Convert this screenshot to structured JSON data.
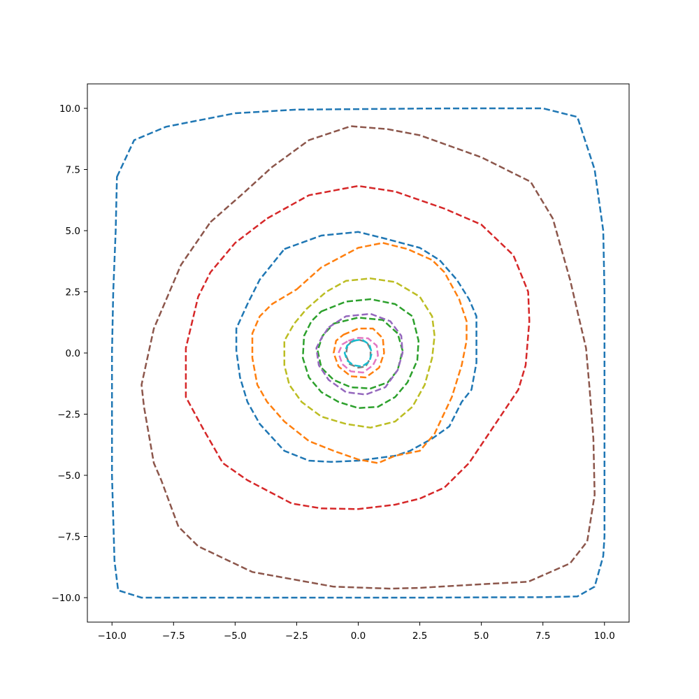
{
  "chart_data": {
    "type": "line",
    "title": "",
    "xlabel": "",
    "ylabel": "",
    "xlim": [
      -11,
      11
    ],
    "ylim": [
      -11,
      11
    ],
    "xticks": [
      -10.0,
      -7.5,
      -5.0,
      -2.5,
      0.0,
      2.5,
      5.0,
      7.5,
      10.0
    ],
    "yticks": [
      -10.0,
      -7.5,
      -5.0,
      -2.5,
      0.0,
      2.5,
      5.0,
      7.5,
      10.0
    ],
    "xtick_labels": [
      "−10.0",
      "−7.5",
      "−5.0",
      "−2.5",
      "0.0",
      "2.5",
      "5.0",
      "7.5",
      "10.0"
    ],
    "ytick_labels": [
      "−10.0",
      "−7.5",
      "−5.0",
      "−2.5",
      "0.0",
      "2.5",
      "5.0",
      "7.5",
      "10.0"
    ],
    "grid": false,
    "line_style": "dashed",
    "series": [
      {
        "color": "#1f77b4",
        "closed": true,
        "points": [
          [
            -9.8,
            7.2
          ],
          [
            -9.1,
            8.7
          ],
          [
            -7.8,
            9.25
          ],
          [
            -5.0,
            9.8
          ],
          [
            -2.5,
            9.95
          ],
          [
            0.0,
            9.97
          ],
          [
            2.5,
            9.99
          ],
          [
            5.0,
            10.0
          ],
          [
            7.5,
            10.0
          ],
          [
            8.9,
            9.65
          ],
          [
            9.6,
            7.5
          ],
          [
            9.95,
            5.0
          ],
          [
            10.0,
            2.5
          ],
          [
            10.0,
            0.0
          ],
          [
            10.0,
            -2.5
          ],
          [
            10.0,
            -5.0
          ],
          [
            10.0,
            -7.5
          ],
          [
            9.95,
            -8.3
          ],
          [
            9.6,
            -9.55
          ],
          [
            8.9,
            -9.95
          ],
          [
            7.5,
            -9.98
          ],
          [
            5.0,
            -9.99
          ],
          [
            2.5,
            -10.0
          ],
          [
            0.0,
            -10.0
          ],
          [
            -2.5,
            -10.0
          ],
          [
            -5.0,
            -10.0
          ],
          [
            -7.5,
            -10.0
          ],
          [
            -8.8,
            -10.0
          ],
          [
            -9.75,
            -9.7
          ],
          [
            -9.9,
            -8.5
          ],
          [
            -10.0,
            -5.0
          ],
          [
            -10.0,
            -2.5
          ],
          [
            -10.0,
            0.0
          ],
          [
            -9.95,
            2.5
          ],
          [
            -9.85,
            5.0
          ]
        ]
      },
      {
        "color": "#8c564b",
        "closed": true,
        "points": [
          [
            -6.0,
            5.35
          ],
          [
            -4.7,
            6.5
          ],
          [
            -3.5,
            7.6
          ],
          [
            -2.0,
            8.7
          ],
          [
            -0.3,
            9.27
          ],
          [
            1.2,
            9.15
          ],
          [
            2.5,
            8.9
          ],
          [
            5.0,
            8.0
          ],
          [
            7.0,
            7.0
          ],
          [
            7.9,
            5.5
          ],
          [
            8.6,
            3.0
          ],
          [
            9.25,
            0.2
          ],
          [
            9.4,
            -1.5
          ],
          [
            9.55,
            -3.5
          ],
          [
            9.6,
            -5.8
          ],
          [
            9.3,
            -7.7
          ],
          [
            8.6,
            -8.6
          ],
          [
            6.9,
            -9.35
          ],
          [
            5.0,
            -9.45
          ],
          [
            2.5,
            -9.6
          ],
          [
            1.3,
            -9.63
          ],
          [
            -1.0,
            -9.55
          ],
          [
            -4.3,
            -8.95
          ],
          [
            -6.5,
            -7.9
          ],
          [
            -7.3,
            -7.1
          ],
          [
            -8.0,
            -5.2
          ],
          [
            -8.3,
            -4.5
          ],
          [
            -8.7,
            -2.2
          ],
          [
            -8.8,
            -1.3
          ],
          [
            -8.3,
            1.0
          ],
          [
            -7.2,
            3.6
          ]
        ]
      },
      {
        "color": "#d62728",
        "closed": true,
        "points": [
          [
            -3.7,
            5.5
          ],
          [
            -2.0,
            6.45
          ],
          [
            0.0,
            6.83
          ],
          [
            1.5,
            6.6
          ],
          [
            3.5,
            5.9
          ],
          [
            5.0,
            5.25
          ],
          [
            6.3,
            4.0
          ],
          [
            6.9,
            2.5
          ],
          [
            6.95,
            1.3
          ],
          [
            6.8,
            -0.5
          ],
          [
            6.5,
            -1.5
          ],
          [
            5.5,
            -3.0
          ],
          [
            4.5,
            -4.5
          ],
          [
            3.5,
            -5.5
          ],
          [
            2.5,
            -5.95
          ],
          [
            1.5,
            -6.2
          ],
          [
            0.0,
            -6.38
          ],
          [
            -1.5,
            -6.35
          ],
          [
            -2.7,
            -6.15
          ],
          [
            -4.5,
            -5.2
          ],
          [
            -5.5,
            -4.5
          ],
          [
            -6.3,
            -3.1
          ],
          [
            -7.0,
            -1.8
          ],
          [
            -7.0,
            0.2
          ],
          [
            -6.5,
            2.3
          ],
          [
            -6.0,
            3.3
          ],
          [
            -5.0,
            4.5
          ]
        ]
      },
      {
        "color": "#1f77b4",
        "closed": true,
        "points": [
          [
            -3.0,
            4.25
          ],
          [
            -1.5,
            4.8
          ],
          [
            0.0,
            4.95
          ],
          [
            1.0,
            4.7
          ],
          [
            2.5,
            4.3
          ],
          [
            3.3,
            3.8
          ],
          [
            4.0,
            3.0
          ],
          [
            4.5,
            2.2
          ],
          [
            4.8,
            1.5
          ],
          [
            4.8,
            0.5
          ],
          [
            4.8,
            -0.4
          ],
          [
            4.6,
            -1.5
          ],
          [
            4.2,
            -2.0
          ],
          [
            3.7,
            -3.0
          ],
          [
            3.0,
            -3.5
          ],
          [
            2.1,
            -4.0
          ],
          [
            1.5,
            -4.2
          ],
          [
            0.0,
            -4.4
          ],
          [
            -1.1,
            -4.45
          ],
          [
            -2.0,
            -4.4
          ],
          [
            -3.0,
            -4.0
          ],
          [
            -4.0,
            -2.9
          ],
          [
            -4.5,
            -2.0
          ],
          [
            -4.8,
            -1.0
          ],
          [
            -4.95,
            0.1
          ],
          [
            -4.95,
            1.0
          ],
          [
            -4.5,
            2.0
          ],
          [
            -4.0,
            3.0
          ]
        ]
      },
      {
        "color": "#ff7f0e",
        "closed": true,
        "points": [
          [
            -2.5,
            2.6
          ],
          [
            -1.5,
            3.5
          ],
          [
            0.0,
            4.3
          ],
          [
            1.0,
            4.5
          ],
          [
            2.0,
            4.25
          ],
          [
            3.0,
            3.8
          ],
          [
            3.5,
            3.3
          ],
          [
            4.1,
            2.2
          ],
          [
            4.4,
            1.3
          ],
          [
            4.4,
            0.5
          ],
          [
            4.2,
            -0.5
          ],
          [
            3.8,
            -1.8
          ],
          [
            3.1,
            -3.3
          ],
          [
            2.5,
            -4.0
          ],
          [
            1.5,
            -4.2
          ],
          [
            0.8,
            -4.5
          ],
          [
            0.0,
            -4.35
          ],
          [
            -1.0,
            -4.0
          ],
          [
            -2.0,
            -3.6
          ],
          [
            -3.0,
            -2.8
          ],
          [
            -3.7,
            -2.0
          ],
          [
            -4.1,
            -1.3
          ],
          [
            -4.3,
            -0.2
          ],
          [
            -4.3,
            0.8
          ],
          [
            -4.0,
            1.5
          ],
          [
            -3.5,
            2.0
          ]
        ]
      },
      {
        "color": "#bcbd22",
        "closed": true,
        "points": [
          [
            -2.1,
            1.8
          ],
          [
            -1.3,
            2.5
          ],
          [
            -0.5,
            2.95
          ],
          [
            0.5,
            3.05
          ],
          [
            1.5,
            2.9
          ],
          [
            2.5,
            2.3
          ],
          [
            3.0,
            1.5
          ],
          [
            3.1,
            0.7
          ],
          [
            3.0,
            -0.2
          ],
          [
            2.7,
            -1.3
          ],
          [
            2.2,
            -2.2
          ],
          [
            1.5,
            -2.8
          ],
          [
            0.5,
            -3.05
          ],
          [
            -0.5,
            -2.9
          ],
          [
            -1.5,
            -2.6
          ],
          [
            -2.3,
            -2.0
          ],
          [
            -2.8,
            -1.3
          ],
          [
            -3.0,
            -0.5
          ],
          [
            -3.0,
            0.5
          ],
          [
            -2.6,
            1.2
          ]
        ]
      },
      {
        "color": "#2ca02c",
        "closed": true,
        "points": [
          [
            -1.5,
            1.7
          ],
          [
            -0.5,
            2.1
          ],
          [
            0.5,
            2.2
          ],
          [
            1.5,
            2.0
          ],
          [
            2.2,
            1.5
          ],
          [
            2.45,
            0.5
          ],
          [
            2.4,
            -0.3
          ],
          [
            2.0,
            -1.2
          ],
          [
            1.5,
            -1.8
          ],
          [
            0.8,
            -2.2
          ],
          [
            0.0,
            -2.25
          ],
          [
            -0.8,
            -2.0
          ],
          [
            -1.5,
            -1.6
          ],
          [
            -2.0,
            -1.0
          ],
          [
            -2.25,
            -0.2
          ],
          [
            -2.2,
            0.7
          ],
          [
            -1.9,
            1.3
          ]
        ]
      },
      {
        "color": "#2ca02c",
        "closed": true,
        "points": [
          [
            -1.0,
            1.2
          ],
          [
            0.0,
            1.45
          ],
          [
            1.0,
            1.35
          ],
          [
            1.6,
            0.8
          ],
          [
            1.8,
            0.1
          ],
          [
            1.6,
            -0.7
          ],
          [
            1.2,
            -1.2
          ],
          [
            0.5,
            -1.45
          ],
          [
            -0.3,
            -1.4
          ],
          [
            -1.0,
            -1.1
          ],
          [
            -1.5,
            -0.6
          ],
          [
            -1.65,
            0.1
          ],
          [
            -1.45,
            0.7
          ]
        ]
      },
      {
        "color": "#9467bd",
        "closed": true,
        "points": [
          [
            -1.2,
            1.05
          ],
          [
            -0.5,
            1.5
          ],
          [
            0.5,
            1.6
          ],
          [
            1.3,
            1.3
          ],
          [
            1.75,
            0.7
          ],
          [
            1.8,
            0.0
          ],
          [
            1.6,
            -0.7
          ],
          [
            1.1,
            -1.4
          ],
          [
            0.3,
            -1.7
          ],
          [
            -0.5,
            -1.6
          ],
          [
            -1.2,
            -1.1
          ],
          [
            -1.6,
            -0.5
          ],
          [
            -1.7,
            0.2
          ],
          [
            -1.5,
            0.6
          ]
        ]
      },
      {
        "color": "#ff7f0e",
        "closed": true,
        "points": [
          [
            -0.6,
            0.75
          ],
          [
            0.0,
            1.0
          ],
          [
            0.6,
            1.0
          ],
          [
            1.0,
            0.6
          ],
          [
            1.05,
            0.0
          ],
          [
            0.85,
            -0.6
          ],
          [
            0.3,
            -1.0
          ],
          [
            -0.3,
            -0.95
          ],
          [
            -0.8,
            -0.55
          ],
          [
            -1.0,
            0.0
          ],
          [
            -0.9,
            0.5
          ]
        ]
      },
      {
        "color": "#e377c2",
        "closed": true,
        "points": [
          [
            -0.4,
            0.5
          ],
          [
            0.0,
            0.62
          ],
          [
            0.4,
            0.6
          ],
          [
            0.75,
            0.3
          ],
          [
            0.8,
            -0.1
          ],
          [
            0.6,
            -0.5
          ],
          [
            0.2,
            -0.8
          ],
          [
            -0.3,
            -0.75
          ],
          [
            -0.65,
            -0.45
          ],
          [
            -0.8,
            0.0
          ],
          [
            -0.65,
            0.35
          ]
        ]
      },
      {
        "color": "#7f7f7f",
        "closed": true,
        "points": [
          [
            -0.3,
            0.45
          ],
          [
            0.0,
            0.55
          ],
          [
            0.35,
            0.45
          ],
          [
            0.5,
            0.15
          ],
          [
            0.5,
            -0.2
          ],
          [
            0.3,
            -0.55
          ],
          [
            0.0,
            -0.6
          ],
          [
            -0.35,
            -0.45
          ],
          [
            -0.5,
            -0.1
          ],
          [
            -0.45,
            0.25
          ]
        ]
      },
      {
        "color": "#17becf",
        "closed": true,
        "points": [
          [
            -0.2,
            0.5
          ],
          [
            0.15,
            0.55
          ],
          [
            0.45,
            0.35
          ],
          [
            0.55,
            0.0
          ],
          [
            0.45,
            -0.35
          ],
          [
            0.15,
            -0.55
          ],
          [
            -0.2,
            -0.5
          ],
          [
            -0.45,
            -0.3
          ],
          [
            -0.55,
            0.0
          ],
          [
            -0.45,
            0.3
          ]
        ]
      }
    ]
  }
}
